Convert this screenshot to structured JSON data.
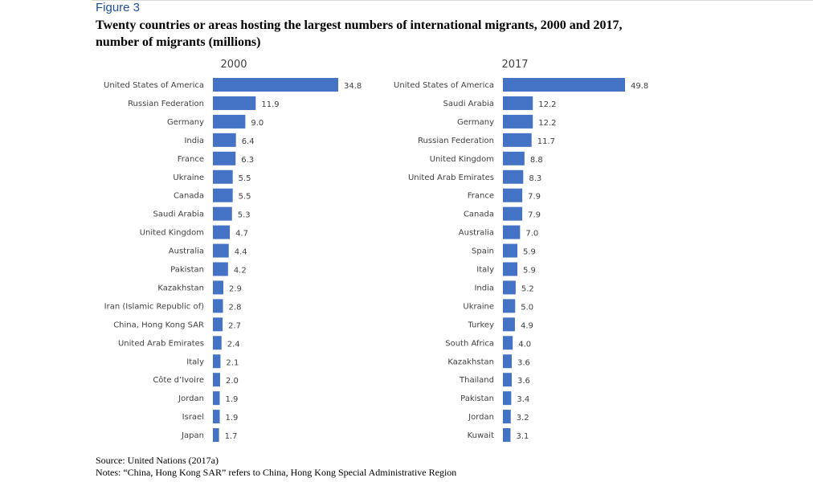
{
  "figure": {
    "label": "Figure 3",
    "title": "Twenty countries or areas hosting the largest numbers of international migrants, 2000 and 2017, number of migrants (millions)"
  },
  "colors": {
    "bar": "#4472c4",
    "label_text": "#404040"
  },
  "chart_data": [
    {
      "type": "bar",
      "orientation": "horizontal",
      "title": "2000",
      "categories": [
        "United States of America",
        "Russian Federation",
        "Germany",
        "India",
        "France",
        "Ukraine",
        "Canada",
        "Saudi Arabia",
        "United Kingdom",
        "Australia",
        "Pakistan",
        "Kazakhstan",
        "Iran (Islamic Republic of)",
        "China, Hong Kong SAR",
        "United Arab Emirates",
        "Italy",
        "Côte d’Ivoire",
        "Jordan",
        "Israel",
        "Japan"
      ],
      "values": [
        34.8,
        11.9,
        9.0,
        6.4,
        6.3,
        5.5,
        5.5,
        5.3,
        4.7,
        4.4,
        4.2,
        2.9,
        2.8,
        2.7,
        2.4,
        2.1,
        2.0,
        1.9,
        1.9,
        1.7
      ],
      "value_labels": [
        "34.8",
        "11.9",
        "9.0",
        "6.4",
        "6.3",
        "5.5",
        "5.5",
        "5.3",
        "4.7",
        "4.4",
        "4.2",
        "2.9",
        "2.8",
        "2.7",
        "2.4",
        "2.1",
        "2.0",
        "1.9",
        "1.9",
        "1.7"
      ],
      "xlim": [
        0,
        34.8
      ],
      "xlabel": "",
      "ylabel": ""
    },
    {
      "type": "bar",
      "orientation": "horizontal",
      "title": "2017",
      "categories": [
        "United States of America",
        "Saudi Arabia",
        "Germany",
        "Russian Federation",
        "United Kingdom",
        "United Arab Emirates",
        "France",
        "Canada",
        "Australia",
        "Spain",
        "Italy",
        "India",
        "Ukraine",
        "Turkey",
        "South Africa",
        "Kazakhstan",
        "Thailand",
        "Pakistan",
        "Jordan",
        "Kuwait"
      ],
      "values": [
        49.8,
        12.2,
        12.2,
        11.7,
        8.8,
        8.3,
        7.9,
        7.9,
        7.0,
        5.9,
        5.9,
        5.2,
        5.0,
        4.9,
        4.0,
        3.6,
        3.6,
        3.4,
        3.2,
        3.1
      ],
      "value_labels": [
        "49.8",
        "12.2",
        "12.2",
        "11.7",
        "8.8",
        "8.3",
        "7.9",
        "7.9",
        "7.0",
        "5.9",
        "5.9",
        "5.2",
        "5.0",
        "4.9",
        "4.0",
        "3.6",
        "3.6",
        "3.4",
        "3.2",
        "3.1"
      ],
      "xlim": [
        0,
        49.8
      ],
      "xlabel": "",
      "ylabel": ""
    }
  ],
  "source": "Source: United Nations (2017a)",
  "notes": "Notes: “China, Hong Kong SAR” refers to China, Hong Kong Special Administrative Region"
}
